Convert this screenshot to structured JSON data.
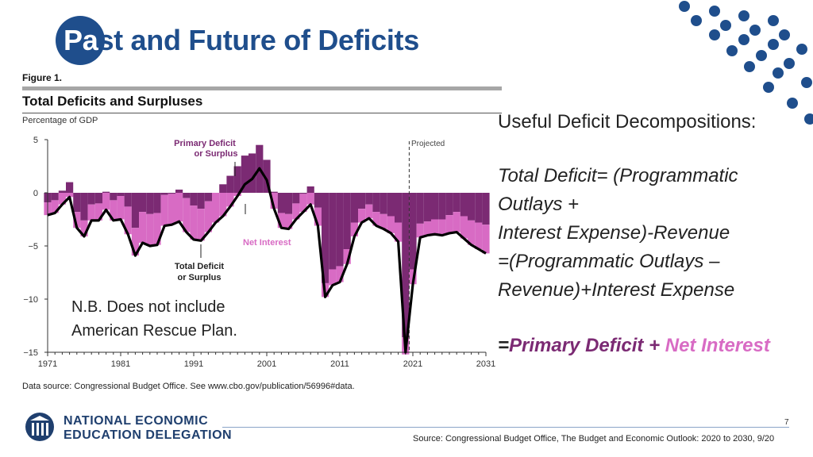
{
  "slide": {
    "title_first": "Pa",
    "title_rest": "st and Future of Deficits",
    "page_number": "7",
    "source": "Source: Congressional Budget Office, The Budget and Economic Outlook: 2020 to 2030, 9/20"
  },
  "figure": {
    "label": "Figure 1.",
    "title": "Total Deficits and Surpluses",
    "units": "Percentage of GDP",
    "data_source": "Data source: Congressional Budget Office. See www.cbo.gov/publication/56996#data.",
    "annotations": {
      "primary_line1": "Primary Deficit",
      "primary_line2": "or Surplus",
      "net_interest": "Net Interest",
      "total_line1": "Total Deficit",
      "total_line2": "or Surplus",
      "projected": "Projected"
    }
  },
  "note": {
    "line1": "N.B.  Does not include",
    "line2": "American Rescue Plan."
  },
  "decomposition": {
    "heading": "Useful Deficit Decompositions:",
    "eq_lines": [
      "Total Deficit= (Programmatic",
      "Outlays +",
      "Interest Expense)-Revenue",
      "=(Programmatic Outlays –",
      "Revenue)+Interest Expense"
    ],
    "final_eq": "=",
    "final_primary": "Primary Deficit",
    "final_plus": " + ",
    "final_net": "Net Interest"
  },
  "logo": {
    "line1": "NATIONAL ECONOMIC",
    "line2": "EDUCATION DELEGATION"
  },
  "colors": {
    "title_blue": "#1f4e8c",
    "primary": "#7b2a73",
    "net_interest": "#d86bc4",
    "total_line": "#000000"
  },
  "chart_data": {
    "type": "bar",
    "title": "Total Deficits and Surpluses",
    "ylabel": "Percentage of GDP",
    "xlabel": "",
    "ylim": [
      -15,
      5
    ],
    "yticks": [
      5,
      0,
      -5,
      -10,
      -15
    ],
    "xticks": [
      1971,
      1981,
      1991,
      2001,
      2011,
      2021,
      2031
    ],
    "projected_from": 2021,
    "x": [
      1971,
      1972,
      1973,
      1974,
      1975,
      1976,
      1977,
      1978,
      1979,
      1980,
      1981,
      1982,
      1983,
      1984,
      1985,
      1986,
      1987,
      1988,
      1989,
      1990,
      1991,
      1992,
      1993,
      1994,
      1995,
      1996,
      1997,
      1998,
      1999,
      2000,
      2001,
      2002,
      2003,
      2004,
      2005,
      2006,
      2007,
      2008,
      2009,
      2010,
      2011,
      2012,
      2013,
      2014,
      2015,
      2016,
      2017,
      2018,
      2019,
      2020,
      2021,
      2022,
      2023,
      2024,
      2025,
      2026,
      2027,
      2028,
      2029,
      2030,
      2031
    ],
    "series": [
      {
        "name": "Total Deficit or Surplus",
        "values": [
          -2.1,
          -1.9,
          -1.1,
          -0.4,
          -3.3,
          -4.1,
          -2.6,
          -2.6,
          -1.6,
          -2.6,
          -2.5,
          -3.9,
          -5.9,
          -4.7,
          -5.0,
          -4.9,
          -3.1,
          -3.0,
          -2.7,
          -3.7,
          -4.4,
          -4.5,
          -3.7,
          -2.8,
          -2.2,
          -1.3,
          -0.3,
          0.8,
          1.3,
          2.3,
          1.2,
          -1.5,
          -3.3,
          -3.4,
          -2.5,
          -1.8,
          -1.1,
          -3.1,
          -9.8,
          -8.7,
          -8.4,
          -6.7,
          -4.1,
          -2.8,
          -2.4,
          -3.1,
          -3.4,
          -3.8,
          -4.6,
          -15.2,
          -8.6,
          -4.2,
          -4.0,
          -3.9,
          -4.0,
          -3.8,
          -3.7,
          -4.3,
          -4.9,
          -5.3,
          -5.7
        ]
      },
      {
        "name": "Net Interest",
        "values": [
          1.2,
          1.2,
          1.3,
          1.4,
          1.5,
          1.5,
          1.5,
          1.6,
          1.7,
          1.9,
          2.2,
          2.6,
          2.6,
          2.9,
          3.0,
          3.0,
          2.9,
          2.9,
          3.0,
          3.2,
          3.2,
          3.0,
          2.9,
          2.8,
          3.0,
          2.9,
          2.8,
          2.7,
          2.4,
          2.2,
          1.9,
          1.6,
          1.4,
          1.4,
          1.5,
          1.7,
          1.7,
          1.7,
          1.3,
          1.5,
          1.5,
          1.4,
          1.3,
          1.3,
          1.3,
          1.3,
          1.4,
          1.6,
          1.8,
          1.6,
          1.4,
          1.3,
          1.3,
          1.4,
          1.5,
          1.7,
          1.9,
          2.1,
          2.3,
          2.5,
          2.7
        ]
      },
      {
        "name": "Primary Deficit or Surplus",
        "values": [
          -0.9,
          -0.7,
          0.2,
          1.0,
          -1.8,
          -2.6,
          -1.1,
          -1.0,
          0.1,
          -0.7,
          -0.3,
          -1.3,
          -3.3,
          -1.8,
          -2.0,
          -1.9,
          -0.2,
          -0.1,
          0.3,
          -0.5,
          -1.2,
          -1.5,
          -0.8,
          0.0,
          0.8,
          1.6,
          2.5,
          3.5,
          3.7,
          4.5,
          3.1,
          0.1,
          -1.9,
          -2.0,
          -1.0,
          -0.1,
          0.6,
          -1.4,
          -8.5,
          -7.2,
          -6.9,
          -5.3,
          -2.8,
          -1.5,
          -1.1,
          -1.8,
          -2.0,
          -2.2,
          -2.8,
          -13.6,
          -7.2,
          -2.9,
          -2.7,
          -2.5,
          -2.5,
          -2.1,
          -1.8,
          -2.2,
          -2.6,
          -2.8,
          -3.0
        ]
      }
    ]
  }
}
